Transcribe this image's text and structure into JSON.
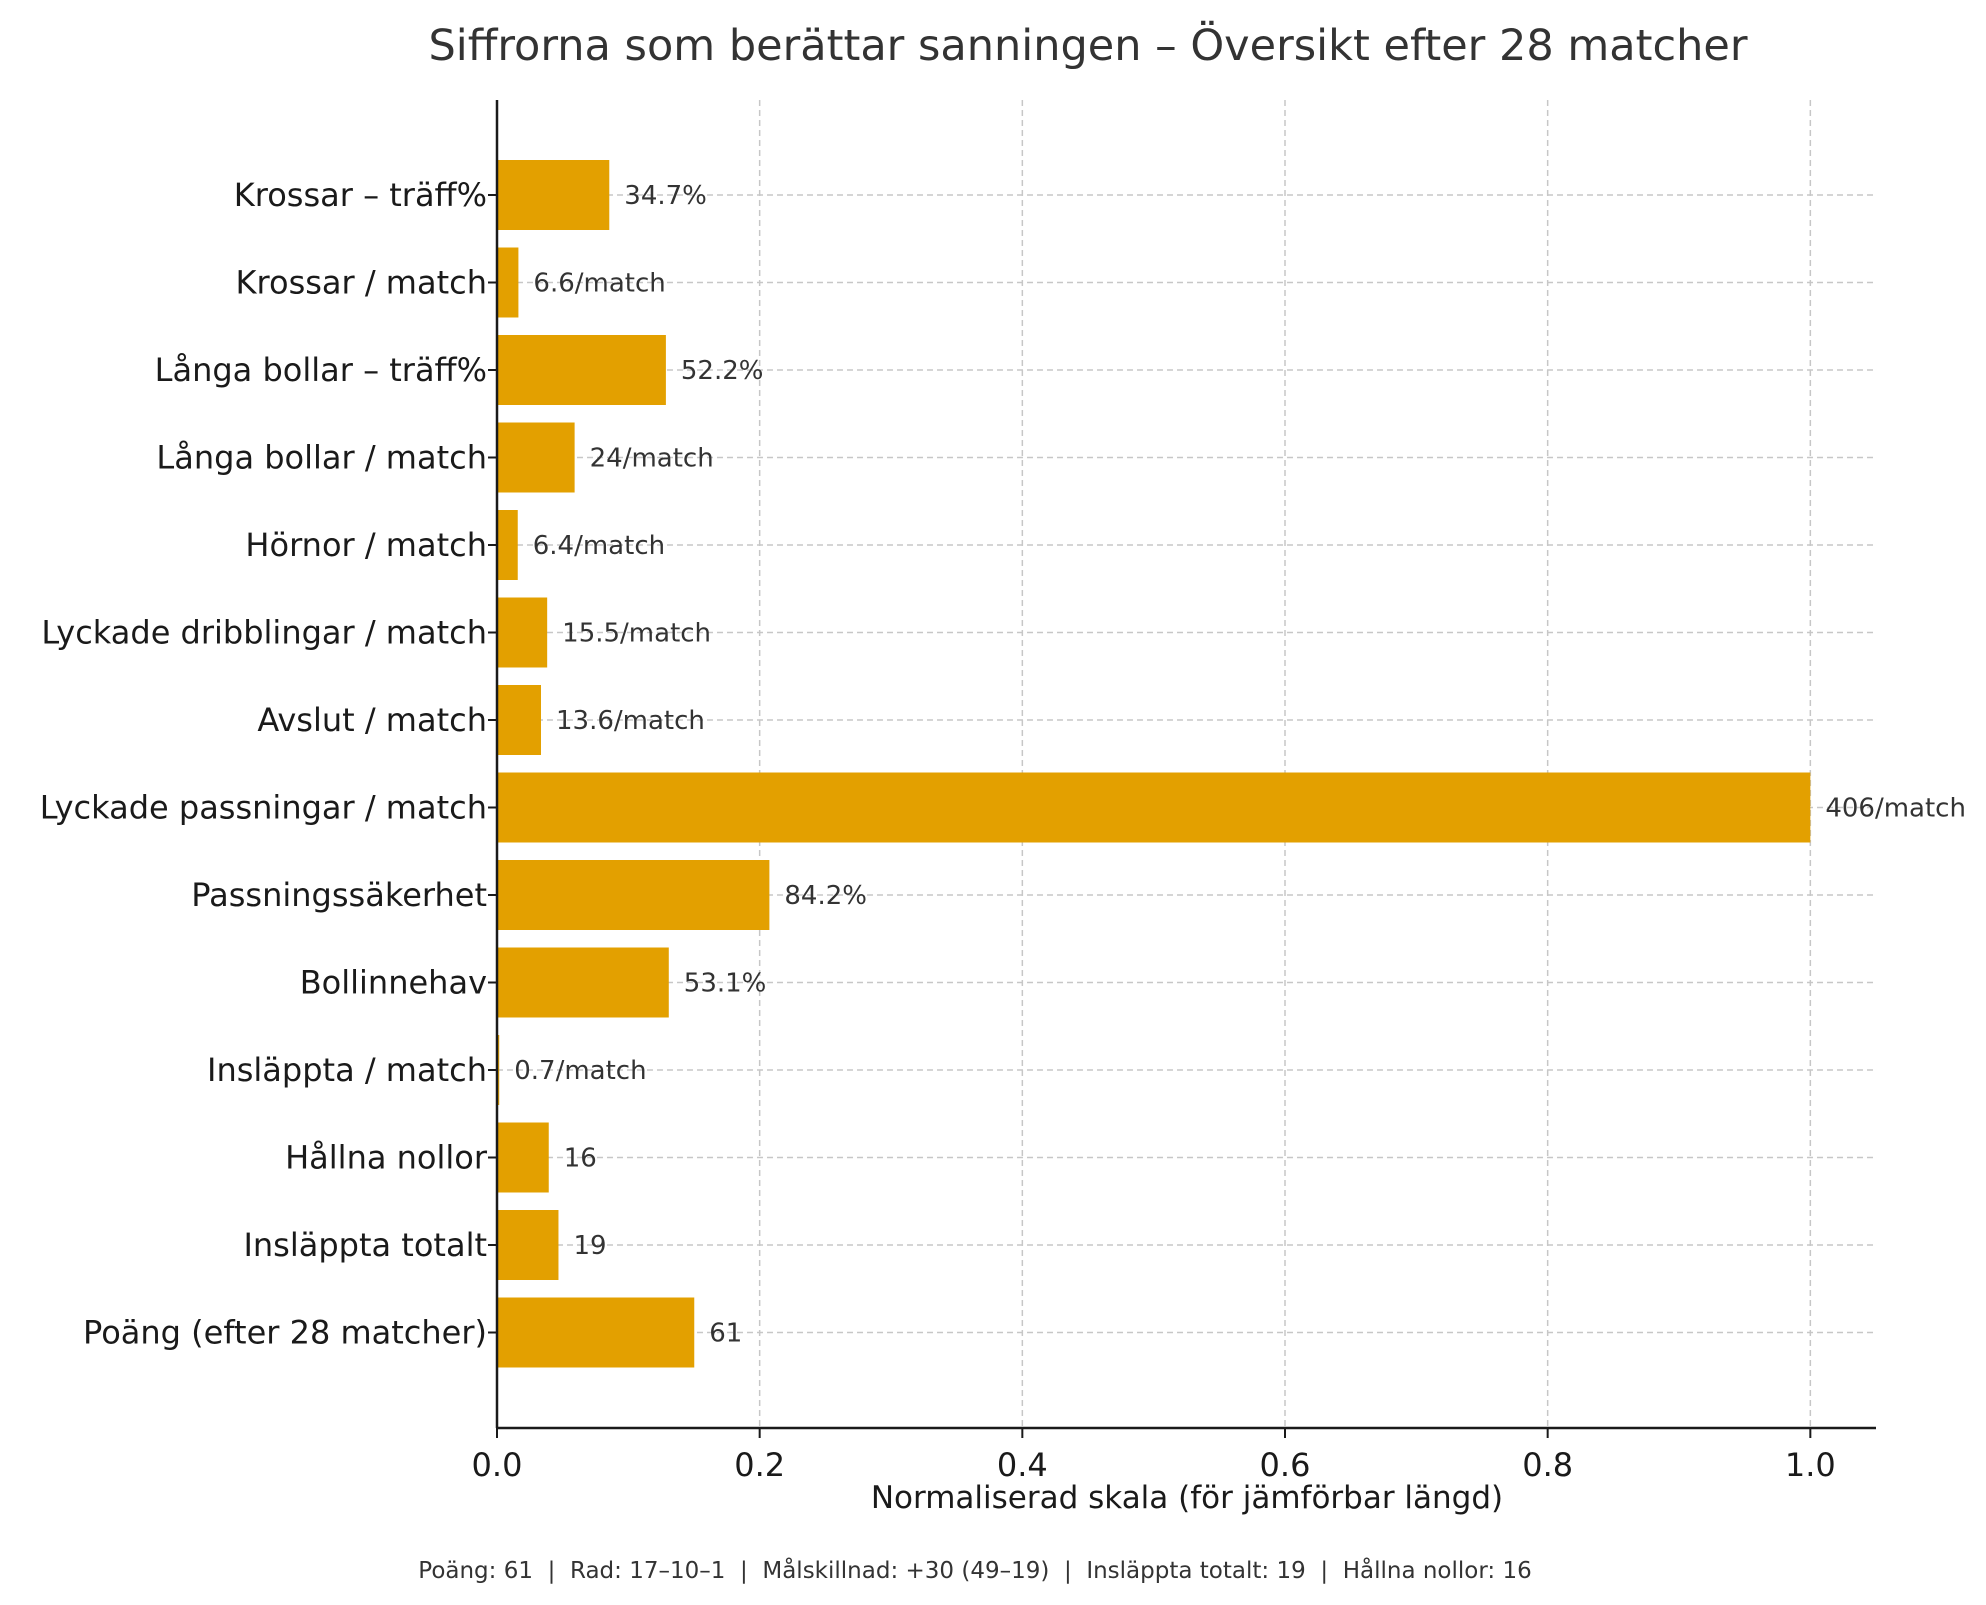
{
  "chart_data": {
    "type": "bar",
    "orientation": "horizontal",
    "title": "Siffrorna som berättar sanningen – Översikt efter 28 matcher",
    "xlabel": "Normaliserad skala (för jämförbar längd)",
    "ylabel": "",
    "xlim": [
      0,
      1.05
    ],
    "xticks": [
      "0.0",
      "0.2",
      "0.4",
      "0.6",
      "0.8",
      "1.0"
    ],
    "xtick_values": [
      0,
      0.2,
      0.4,
      0.6,
      0.8,
      1.0
    ],
    "grid": true,
    "bar_color": "#E3A000",
    "categories": [
      "Krossar – träff%",
      "Krossar / match",
      "Långa bollar – träff%",
      "Långa bollar / match",
      "Hörnor / match",
      "Lyckade dribblingar / match",
      "Avslut / match",
      "Lyckade passningar / match",
      "Passningssäkerhet",
      "Bollinnehav",
      "Insläppta / match",
      "Hållna nollor",
      "Insläppta totalt",
      "Poäng (efter 28 matcher)"
    ],
    "values": [
      0.0855,
      0.0163,
      0.1286,
      0.0591,
      0.0158,
      0.0382,
      0.0335,
      1.0,
      0.2074,
      0.1308,
      0.0017,
      0.0394,
      0.0468,
      0.1502
    ],
    "value_labels": [
      "34.7%",
      "6.6/match",
      "52.2%",
      "24/match",
      "6.4/match",
      "15.5/match",
      "13.6/match",
      "406/match",
      "84.2%",
      "53.1%",
      "0.7/match",
      "16",
      "19",
      "61"
    ]
  },
  "footer": {
    "text": "Poäng: 61  |  Rad: 17–10–1  |  Målskillnad: +30 (49–19)  |  Insläppta totalt: 19  |  Hållna nollor: 16"
  }
}
